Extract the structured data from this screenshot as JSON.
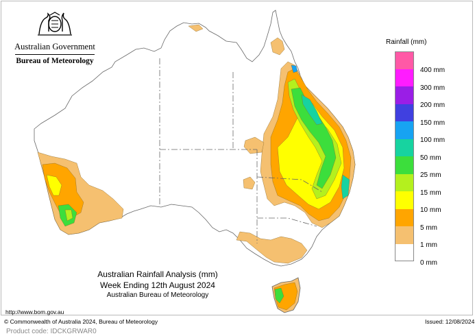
{
  "header": {
    "government": "Australian Government",
    "bureau": "Bureau of Meteorology",
    "crest_icon": "coat-of-arms-icon"
  },
  "legend": {
    "title": "Rainfall (mm)",
    "items": [
      {
        "label": "400 mm",
        "color": "#ff59a6"
      },
      {
        "label": "300 mm",
        "color": "#ff1cff"
      },
      {
        "label": "200 mm",
        "color": "#9a1ee6"
      },
      {
        "label": "150 mm",
        "color": "#4040e0"
      },
      {
        "label": "100 mm",
        "color": "#17a3f2"
      },
      {
        "label": "50 mm",
        "color": "#17d3a0"
      },
      {
        "label": "25 mm",
        "color": "#3cde3c"
      },
      {
        "label": "15 mm",
        "color": "#b4f01e"
      },
      {
        "label": "10 mm",
        "color": "#ffff00"
      },
      {
        "label": "5 mm",
        "color": "#ffa500"
      },
      {
        "label": "1 mm",
        "color": "#f5c070"
      },
      {
        "label": "0 mm",
        "color": "#ffffff"
      }
    ]
  },
  "map_title": {
    "line1": "Australian Rainfall Analysis (mm)",
    "line2": "Week Ending 12th August 2024",
    "line3": "Australian Bureau of Meteorology"
  },
  "footer": {
    "url": "http://www.bom.gov.au",
    "copyright": "© Commonwealth of Australia 2024, Bureau of Meteorology",
    "issued": "Issued: 12/08/2024",
    "product_code": "Product code: IDCKGRWAR0"
  }
}
